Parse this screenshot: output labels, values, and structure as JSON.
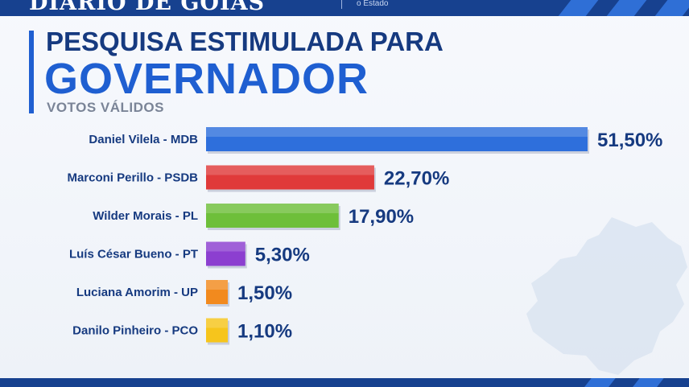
{
  "header": {
    "logo_text": "DIÁRIO DE GOIÁS",
    "tagline": "o Estado"
  },
  "chart_data": {
    "type": "bar",
    "orientation": "horizontal",
    "title": "PESQUISA ESTIMULADA PARA",
    "subtitle_highlight": "GOVERNADOR",
    "caption": "VOTOS VÁLIDOS",
    "categories": [
      "Daniel Vilela - MDB",
      "Marconi Perillo - PSDB",
      "Wilder Morais - PL",
      "Luís César Bueno - PT",
      "Luciana Amorim - UP",
      "Danilo Pinheiro - PCO"
    ],
    "values": [
      51.5,
      22.7,
      17.9,
      5.3,
      1.5,
      1.1
    ],
    "value_labels": [
      "51,50%",
      "22,70%",
      "17,90%",
      "5,30%",
      "1,50%",
      "1,10%"
    ],
    "colors": [
      "#2e6fdc",
      "#e03a3a",
      "#6ebf3a",
      "#8c3fd0",
      "#f28a1e",
      "#f6c51c"
    ],
    "xlim": [
      0,
      51.5
    ],
    "grid": false,
    "legend": "none"
  }
}
